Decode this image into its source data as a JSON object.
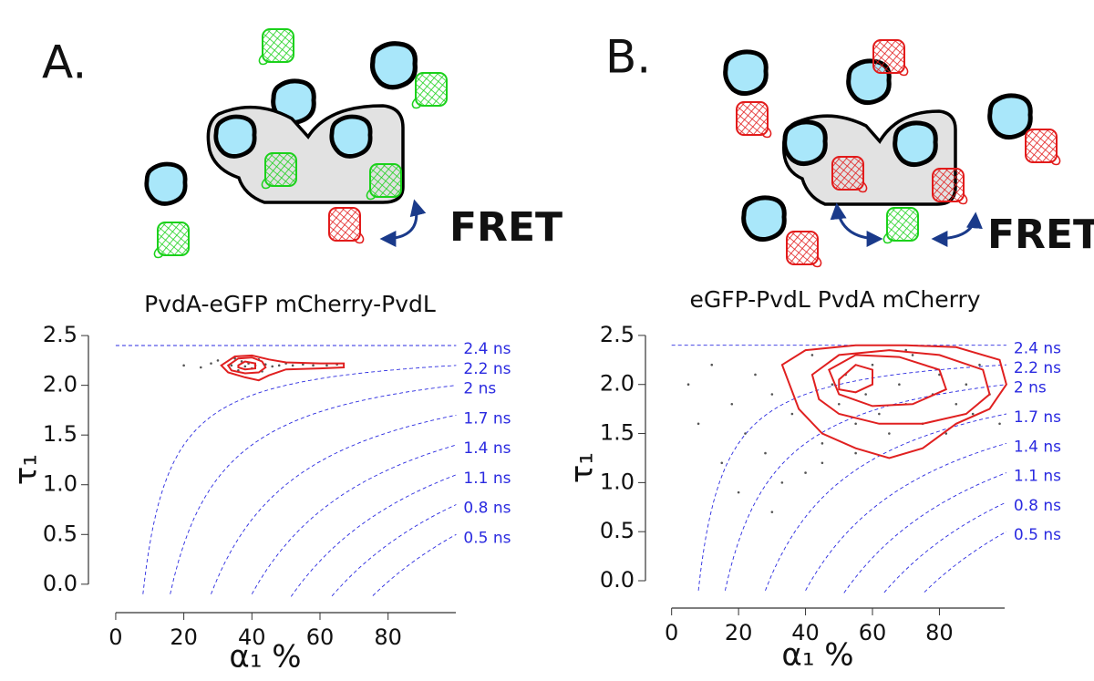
{
  "diagrams": [
    {
      "label": "A.",
      "annotation": "FRET"
    },
    {
      "label": "B.",
      "annotation": "FRET"
    }
  ],
  "chart_data": [
    {
      "type": "scatter",
      "title": "PvdA-eGFP mCherry-PvdL",
      "xlabel": "α₁ %",
      "ylabel": "τ₁",
      "xlim": [
        -4,
        124
      ],
      "ylim": [
        -0.13,
        2.62
      ],
      "xticks": [
        0,
        20,
        40,
        60,
        80
      ],
      "yticks": [
        {
          "value": 0,
          "label": "0.0"
        },
        0.5,
        {
          "value": 1,
          "label": "1.0"
        },
        1.5,
        {
          "value": 2,
          "label": "2.0"
        },
        2.5
      ],
      "iso_lines": {
        "values": [
          2.4,
          2.2,
          2,
          1.7,
          1.4,
          1.1,
          0.8,
          0.5
        ],
        "value_labels": [
          "2.4 ns",
          "2.2 ns",
          "2 ns",
          "1.7 ns",
          "1.4 ns",
          "1.1 ns",
          "0.8 ns",
          "0.5 ns"
        ],
        "color": "#2a2ae0"
      },
      "points": {
        "color": "#555555",
        "x": [
          20,
          25,
          30,
          34,
          36,
          37,
          38,
          39,
          40,
          41,
          42,
          44,
          46,
          48,
          50,
          52,
          55,
          58,
          62,
          65,
          28,
          35,
          43
        ],
        "y": [
          2.2,
          2.18,
          2.25,
          2.2,
          2.15,
          2.24,
          2.19,
          2.22,
          2.17,
          2.2,
          2.26,
          2.21,
          2.19,
          2.2,
          2.22,
          2.2,
          2.21,
          2.2,
          2.2,
          2.21,
          2.22,
          2.27,
          2.14
        ]
      },
      "contours": {
        "color": "#e02020",
        "series": [
          {
            "x": [
              31,
              35,
              40,
              45,
              50,
              60,
              67,
              67,
              60,
              50,
              45,
              42,
              38,
              33
            ],
            "y": [
              2.2,
              2.29,
              2.3,
              2.26,
              2.23,
              2.22,
              2.22,
              2.18,
              2.17,
              2.16,
              2.1,
              2.05,
              2.08,
              2.13
            ]
          },
          {
            "x": [
              33,
              36,
              40,
              43,
              44,
              42,
              38,
              34
            ],
            "y": [
              2.2,
              2.27,
              2.28,
              2.24,
              2.18,
              2.13,
              2.12,
              2.15
            ]
          },
          {
            "x": [
              36,
              38,
              41,
              41,
              38,
              36
            ],
            "y": [
              2.2,
              2.24,
              2.22,
              2.17,
              2.16,
              2.18
            ]
          }
        ]
      }
    },
    {
      "type": "scatter",
      "title": "eGFP-PvdL  PvdA mCherry",
      "xlabel": "α₁ %",
      "ylabel": "τ₁",
      "xlim": [
        -4,
        124
      ],
      "ylim": [
        -0.13,
        2.62
      ],
      "xticks": [
        0,
        20,
        40,
        60,
        80
      ],
      "yticks": [
        {
          "value": 0,
          "label": "0.0"
        },
        0.5,
        {
          "value": 1,
          "label": "1.0"
        },
        1.5,
        {
          "value": 2,
          "label": "2.0"
        },
        2.5
      ],
      "iso_lines": {
        "values": [
          2.4,
          2.2,
          2,
          1.7,
          1.4,
          1.1,
          0.8,
          0.5
        ],
        "value_labels": [
          "2.4 ns",
          "2.2 ns",
          "2 ns",
          "1.7 ns",
          "1.4 ns",
          "1.1 ns",
          "0.8 ns",
          "0.5 ns"
        ],
        "color": "#2a2ae0"
      },
      "points": {
        "color": "#555555",
        "x": [
          5,
          8,
          12,
          15,
          18,
          22,
          25,
          28,
          30,
          33,
          36,
          40,
          42,
          45,
          48,
          50,
          52,
          55,
          58,
          60,
          62,
          65,
          68,
          70,
          72,
          75,
          78,
          80,
          82,
          85,
          88,
          90,
          92,
          95,
          98,
          20,
          30,
          45,
          55,
          70
        ],
        "y": [
          2.0,
          1.6,
          2.2,
          1.2,
          1.8,
          1.5,
          2.1,
          1.3,
          1.9,
          1.0,
          1.7,
          1.1,
          2.3,
          1.4,
          2.0,
          1.8,
          2.1,
          1.6,
          1.9,
          2.2,
          1.7,
          1.5,
          2.0,
          1.8,
          2.3,
          1.6,
          1.9,
          2.1,
          1.5,
          1.8,
          2.0,
          1.7,
          2.2,
          1.9,
          1.6,
          0.9,
          0.7,
          1.2,
          1.3,
          2.35
        ]
      },
      "contours": {
        "color": "#e02020",
        "series": [
          {
            "x": [
              33,
              40,
              55,
              70,
              85,
              98,
              100,
              95,
              85,
              75,
              65,
              55,
              45,
              38
            ],
            "y": [
              2.2,
              2.35,
              2.4,
              2.4,
              2.38,
              2.25,
              2.0,
              1.75,
              1.6,
              1.35,
              1.25,
              1.35,
              1.5,
              1.75
            ]
          },
          {
            "x": [
              42,
              50,
              65,
              80,
              93,
              95,
              88,
              75,
              62,
              50,
              44
            ],
            "y": [
              2.1,
              2.3,
              2.35,
              2.3,
              2.15,
              1.9,
              1.7,
              1.6,
              1.6,
              1.7,
              1.85
            ]
          },
          {
            "x": [
              47,
              55,
              68,
              80,
              82,
              72,
              60,
              50
            ],
            "y": [
              2.15,
              2.3,
              2.28,
              2.15,
              1.95,
              1.8,
              1.78,
              1.9
            ]
          },
          {
            "x": [
              50,
              55,
              60,
              60,
              55,
              50
            ],
            "y": [
              2.05,
              2.2,
              2.15,
              2.0,
              1.92,
              1.95
            ]
          }
        ]
      }
    }
  ]
}
